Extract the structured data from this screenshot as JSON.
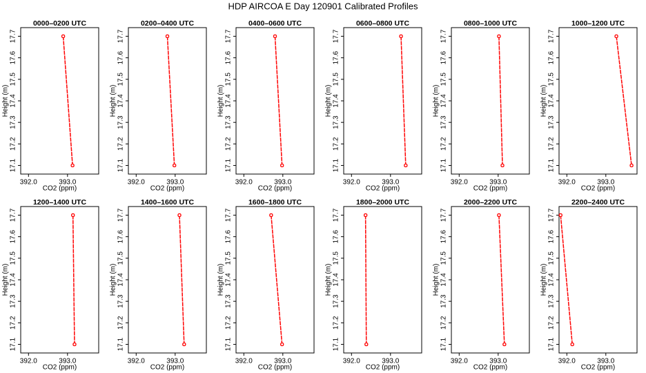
{
  "title": "HDP AIRCOA E  Day 120901  Calibrated Profiles",
  "chart_data": [
    {
      "type": "line",
      "title": "0000–0200 UTC",
      "xlabel": "CO2 (ppm)",
      "ylabel": "Height (m)",
      "x": [
        392.89,
        393.13
      ],
      "values": [
        17.7,
        17.1
      ],
      "color": "#ff0000",
      "xlim": [
        391.8,
        393.8
      ],
      "xticks": [
        {
          "value": 392,
          "label": "392.0"
        },
        {
          "value": 393,
          "label": "393.0"
        }
      ],
      "ylim": [
        17.06,
        17.74
      ],
      "yticks": [
        17.1,
        17.2,
        17.3,
        17.4,
        17.5,
        17.6,
        17.7
      ],
      "grid": false
    },
    {
      "type": "line",
      "title": "0200–0400 UTC",
      "xlabel": "CO2 (ppm)",
      "ylabel": "Height (m)",
      "x": [
        392.8,
        392.98
      ],
      "values": [
        17.7,
        17.1
      ],
      "color": "#ff0000",
      "xlim": [
        391.8,
        393.8
      ],
      "xticks": [
        {
          "value": 392,
          "label": "392.0"
        },
        {
          "value": 393,
          "label": "393.0"
        }
      ],
      "ylim": [
        17.06,
        17.74
      ],
      "yticks": [
        17.1,
        17.2,
        17.3,
        17.4,
        17.5,
        17.6,
        17.7
      ],
      "grid": false
    },
    {
      "type": "line",
      "title": "0400–0600 UTC",
      "xlabel": "CO2 (ppm)",
      "ylabel": "Height (m)",
      "x": [
        392.8,
        392.98
      ],
      "values": [
        17.7,
        17.1
      ],
      "color": "#ff0000",
      "xlim": [
        391.8,
        393.8
      ],
      "xticks": [
        {
          "value": 392,
          "label": "392.0"
        },
        {
          "value": 393,
          "label": "393.0"
        }
      ],
      "ylim": [
        17.06,
        17.74
      ],
      "yticks": [
        17.1,
        17.2,
        17.3,
        17.4,
        17.5,
        17.6,
        17.7
      ],
      "grid": false
    },
    {
      "type": "line",
      "title": "0600–0800 UTC",
      "xlabel": "CO2 (ppm)",
      "ylabel": "Height (m)",
      "x": [
        393.27,
        393.39
      ],
      "values": [
        17.7,
        17.1
      ],
      "color": "#ff0000",
      "xlim": [
        391.8,
        393.8
      ],
      "xticks": [
        {
          "value": 392,
          "label": "392.0"
        },
        {
          "value": 393,
          "label": "393.0"
        }
      ],
      "ylim": [
        17.06,
        17.74
      ],
      "yticks": [
        17.1,
        17.2,
        17.3,
        17.4,
        17.5,
        17.6,
        17.7
      ],
      "grid": false
    },
    {
      "type": "line",
      "title": "0800–1000 UTC",
      "xlabel": "CO2 (ppm)",
      "ylabel": "Height (m)",
      "x": [
        393.02,
        393.11
      ],
      "values": [
        17.7,
        17.1
      ],
      "color": "#ff0000",
      "xlim": [
        391.8,
        393.8
      ],
      "xticks": [
        {
          "value": 392,
          "label": "392.0"
        },
        {
          "value": 393,
          "label": "393.0"
        }
      ],
      "ylim": [
        17.06,
        17.74
      ],
      "yticks": [
        17.1,
        17.2,
        17.3,
        17.4,
        17.5,
        17.6,
        17.7
      ],
      "grid": false
    },
    {
      "type": "line",
      "title": "1000–1200 UTC",
      "xlabel": "CO2 (ppm)",
      "ylabel": "Height (m)",
      "x": [
        393.27,
        393.66
      ],
      "values": [
        17.7,
        17.1
      ],
      "color": "#ff0000",
      "xlim": [
        391.8,
        393.8
      ],
      "xticks": [
        {
          "value": 392,
          "label": "392.0"
        },
        {
          "value": 393,
          "label": "393.0"
        }
      ],
      "ylim": [
        17.06,
        17.74
      ],
      "yticks": [
        17.1,
        17.2,
        17.3,
        17.4,
        17.5,
        17.6,
        17.7
      ],
      "grid": false
    },
    {
      "type": "line",
      "title": "1200–1400 UTC",
      "xlabel": "CO2 (ppm)",
      "ylabel": "Height (m)",
      "x": [
        393.14,
        393.18
      ],
      "values": [
        17.7,
        17.1
      ],
      "color": "#ff0000",
      "xlim": [
        391.8,
        393.8
      ],
      "xticks": [
        {
          "value": 392,
          "label": "392.0"
        },
        {
          "value": 393,
          "label": "393.0"
        }
      ],
      "ylim": [
        17.06,
        17.74
      ],
      "yticks": [
        17.1,
        17.2,
        17.3,
        17.4,
        17.5,
        17.6,
        17.7
      ],
      "grid": false
    },
    {
      "type": "line",
      "title": "1400–1600 UTC",
      "xlabel": "CO2 (ppm)",
      "ylabel": "Height (m)",
      "x": [
        393.11,
        393.23
      ],
      "values": [
        17.7,
        17.1
      ],
      "color": "#ff0000",
      "xlim": [
        391.8,
        393.8
      ],
      "xticks": [
        {
          "value": 392,
          "label": "392.0"
        },
        {
          "value": 393,
          "label": "393.0"
        }
      ],
      "ylim": [
        17.06,
        17.74
      ],
      "yticks": [
        17.1,
        17.2,
        17.3,
        17.4,
        17.5,
        17.6,
        17.7
      ],
      "grid": false
    },
    {
      "type": "line",
      "title": "1600–1800 UTC",
      "xlabel": "CO2 (ppm)",
      "ylabel": "Height (m)",
      "x": [
        392.7,
        392.98
      ],
      "values": [
        17.7,
        17.1
      ],
      "color": "#ff0000",
      "xlim": [
        391.8,
        393.8
      ],
      "xticks": [
        {
          "value": 392,
          "label": "392.0"
        },
        {
          "value": 393,
          "label": "393.0"
        }
      ],
      "ylim": [
        17.06,
        17.74
      ],
      "yticks": [
        17.1,
        17.2,
        17.3,
        17.4,
        17.5,
        17.6,
        17.7
      ],
      "grid": false
    },
    {
      "type": "line",
      "title": "1800–2000 UTC",
      "xlabel": "CO2 (ppm)",
      "ylabel": "Height (m)",
      "x": [
        392.36,
        392.38
      ],
      "values": [
        17.7,
        17.1
      ],
      "color": "#ff0000",
      "xlim": [
        391.8,
        393.8
      ],
      "xticks": [
        {
          "value": 392,
          "label": "392.0"
        },
        {
          "value": 393,
          "label": "393.0"
        }
      ],
      "ylim": [
        17.06,
        17.74
      ],
      "yticks": [
        17.1,
        17.2,
        17.3,
        17.4,
        17.5,
        17.6,
        17.7
      ],
      "grid": false
    },
    {
      "type": "line",
      "title": "2000–2200 UTC",
      "xlabel": "CO2 (ppm)",
      "ylabel": "Height (m)",
      "x": [
        393.02,
        393.16
      ],
      "values": [
        17.7,
        17.1
      ],
      "color": "#ff0000",
      "xlim": [
        391.8,
        393.8
      ],
      "xticks": [
        {
          "value": 392,
          "label": "392.0"
        },
        {
          "value": 393,
          "label": "393.0"
        }
      ],
      "ylim": [
        17.06,
        17.74
      ],
      "yticks": [
        17.1,
        17.2,
        17.3,
        17.4,
        17.5,
        17.6,
        17.7
      ],
      "grid": false
    },
    {
      "type": "line",
      "title": "2200–2400 UTC",
      "xlabel": "CO2 (ppm)",
      "ylabel": "Height (m)",
      "x": [
        391.84,
        392.14
      ],
      "values": [
        17.7,
        17.1
      ],
      "color": "#ff0000",
      "xlim": [
        391.8,
        393.8
      ],
      "xticks": [
        {
          "value": 392,
          "label": "392.0"
        },
        {
          "value": 393,
          "label": "393.0"
        }
      ],
      "ylim": [
        17.06,
        17.74
      ],
      "yticks": [
        17.1,
        17.2,
        17.3,
        17.4,
        17.5,
        17.6,
        17.7
      ],
      "grid": false
    }
  ]
}
